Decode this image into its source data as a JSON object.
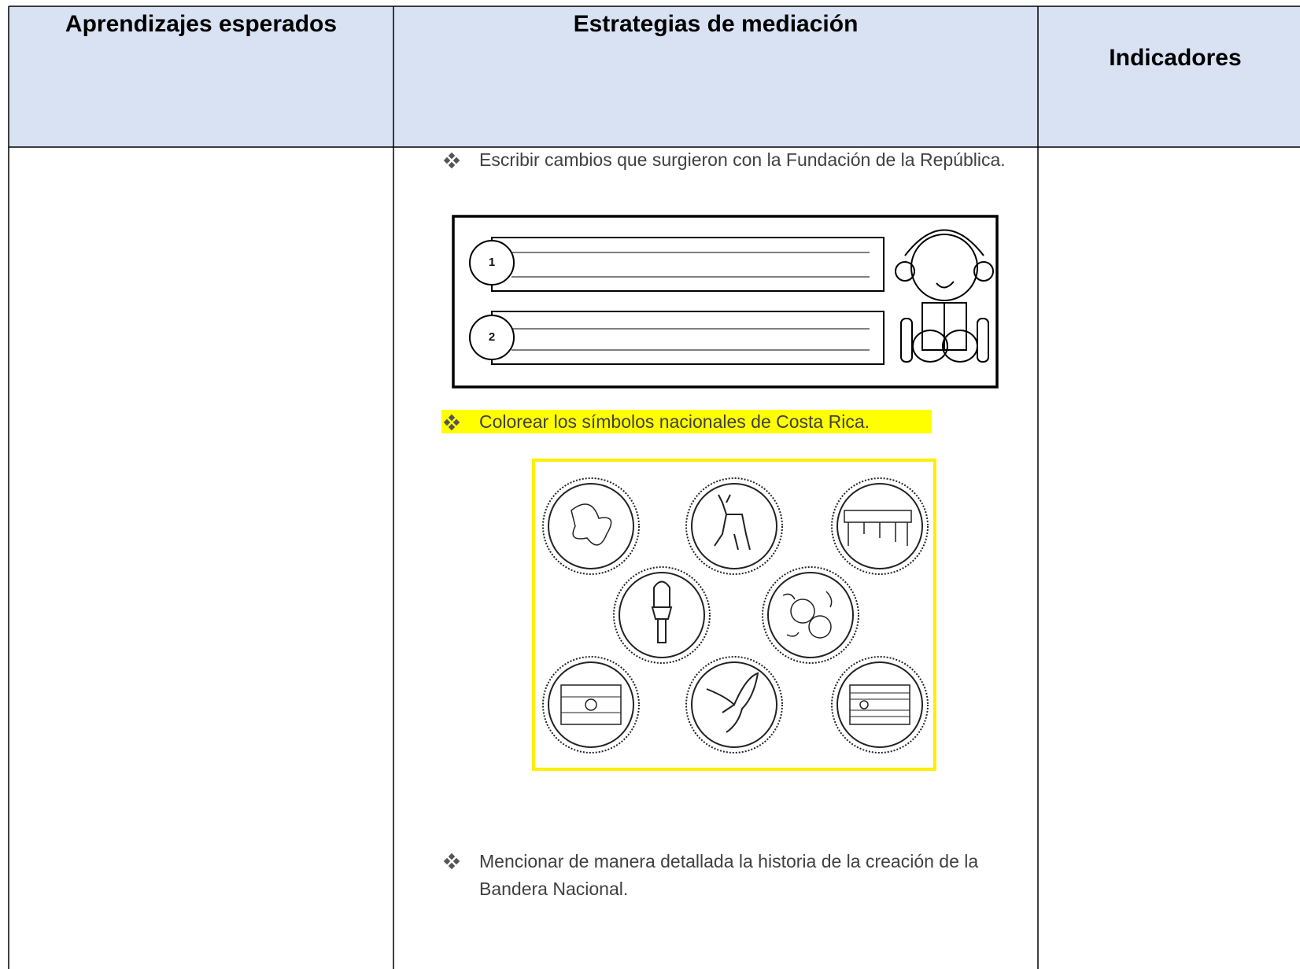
{
  "header": {
    "columns": [
      "Aprendizajes esperados",
      "Estrategias de mediación",
      "Indicadores"
    ]
  },
  "strategies": [
    {
      "text": "Escribir cambios que surgieron con la Fundación de la República."
    },
    {
      "text": "Colorear los símbolos nacionales de Costa Rica."
    },
    {
      "text": "Mencionar de manera detallada la historia de la creación de la Bandera Nacional."
    }
  ],
  "worksheet": {
    "numbers": [
      "1",
      "2"
    ]
  }
}
